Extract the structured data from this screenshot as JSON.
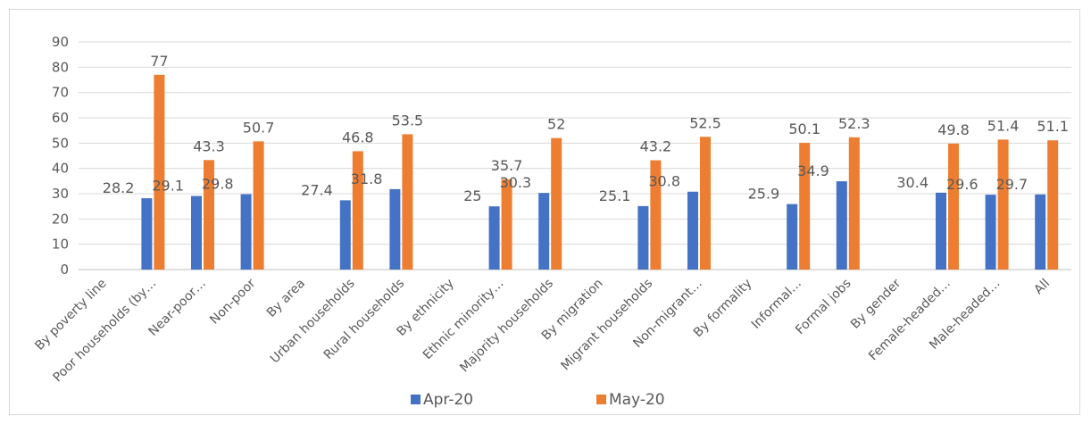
{
  "chart_data": {
    "type": "bar",
    "title": "",
    "xlabel": "",
    "ylabel": "",
    "ylim": [
      0,
      90
    ],
    "yticks": [
      0,
      10,
      20,
      30,
      40,
      50,
      60,
      70,
      80,
      90
    ],
    "grid": true,
    "legend_position": "bottom",
    "categories": [
      "By poverty line",
      "Poor households (by…",
      "Near-poor…",
      "Non-poor",
      "By area",
      "Urban households",
      "Rural households",
      "By ethnicity",
      "Ethnic minority…",
      "Majority households",
      "By migration",
      "Migrant households",
      "Non-migrant…",
      "By formality",
      "Informal…",
      "Formal jobs",
      "By gender",
      "Female-headed…",
      "Male-headed…",
      "All"
    ],
    "series": [
      {
        "name": "Apr-20",
        "color": "#4472c4",
        "values": [
          null,
          28.2,
          29.1,
          29.8,
          null,
          27.4,
          31.8,
          null,
          25,
          30.3,
          null,
          25.1,
          30.8,
          null,
          25.9,
          34.9,
          null,
          30.4,
          29.6,
          29.7
        ]
      },
      {
        "name": "May-20",
        "color": "#ed7d31",
        "values": [
          null,
          77,
          43.3,
          50.7,
          null,
          46.8,
          53.5,
          null,
          35.7,
          52,
          null,
          43.2,
          52.5,
          null,
          50.1,
          52.3,
          null,
          49.8,
          51.4,
          51.1
        ]
      }
    ]
  }
}
